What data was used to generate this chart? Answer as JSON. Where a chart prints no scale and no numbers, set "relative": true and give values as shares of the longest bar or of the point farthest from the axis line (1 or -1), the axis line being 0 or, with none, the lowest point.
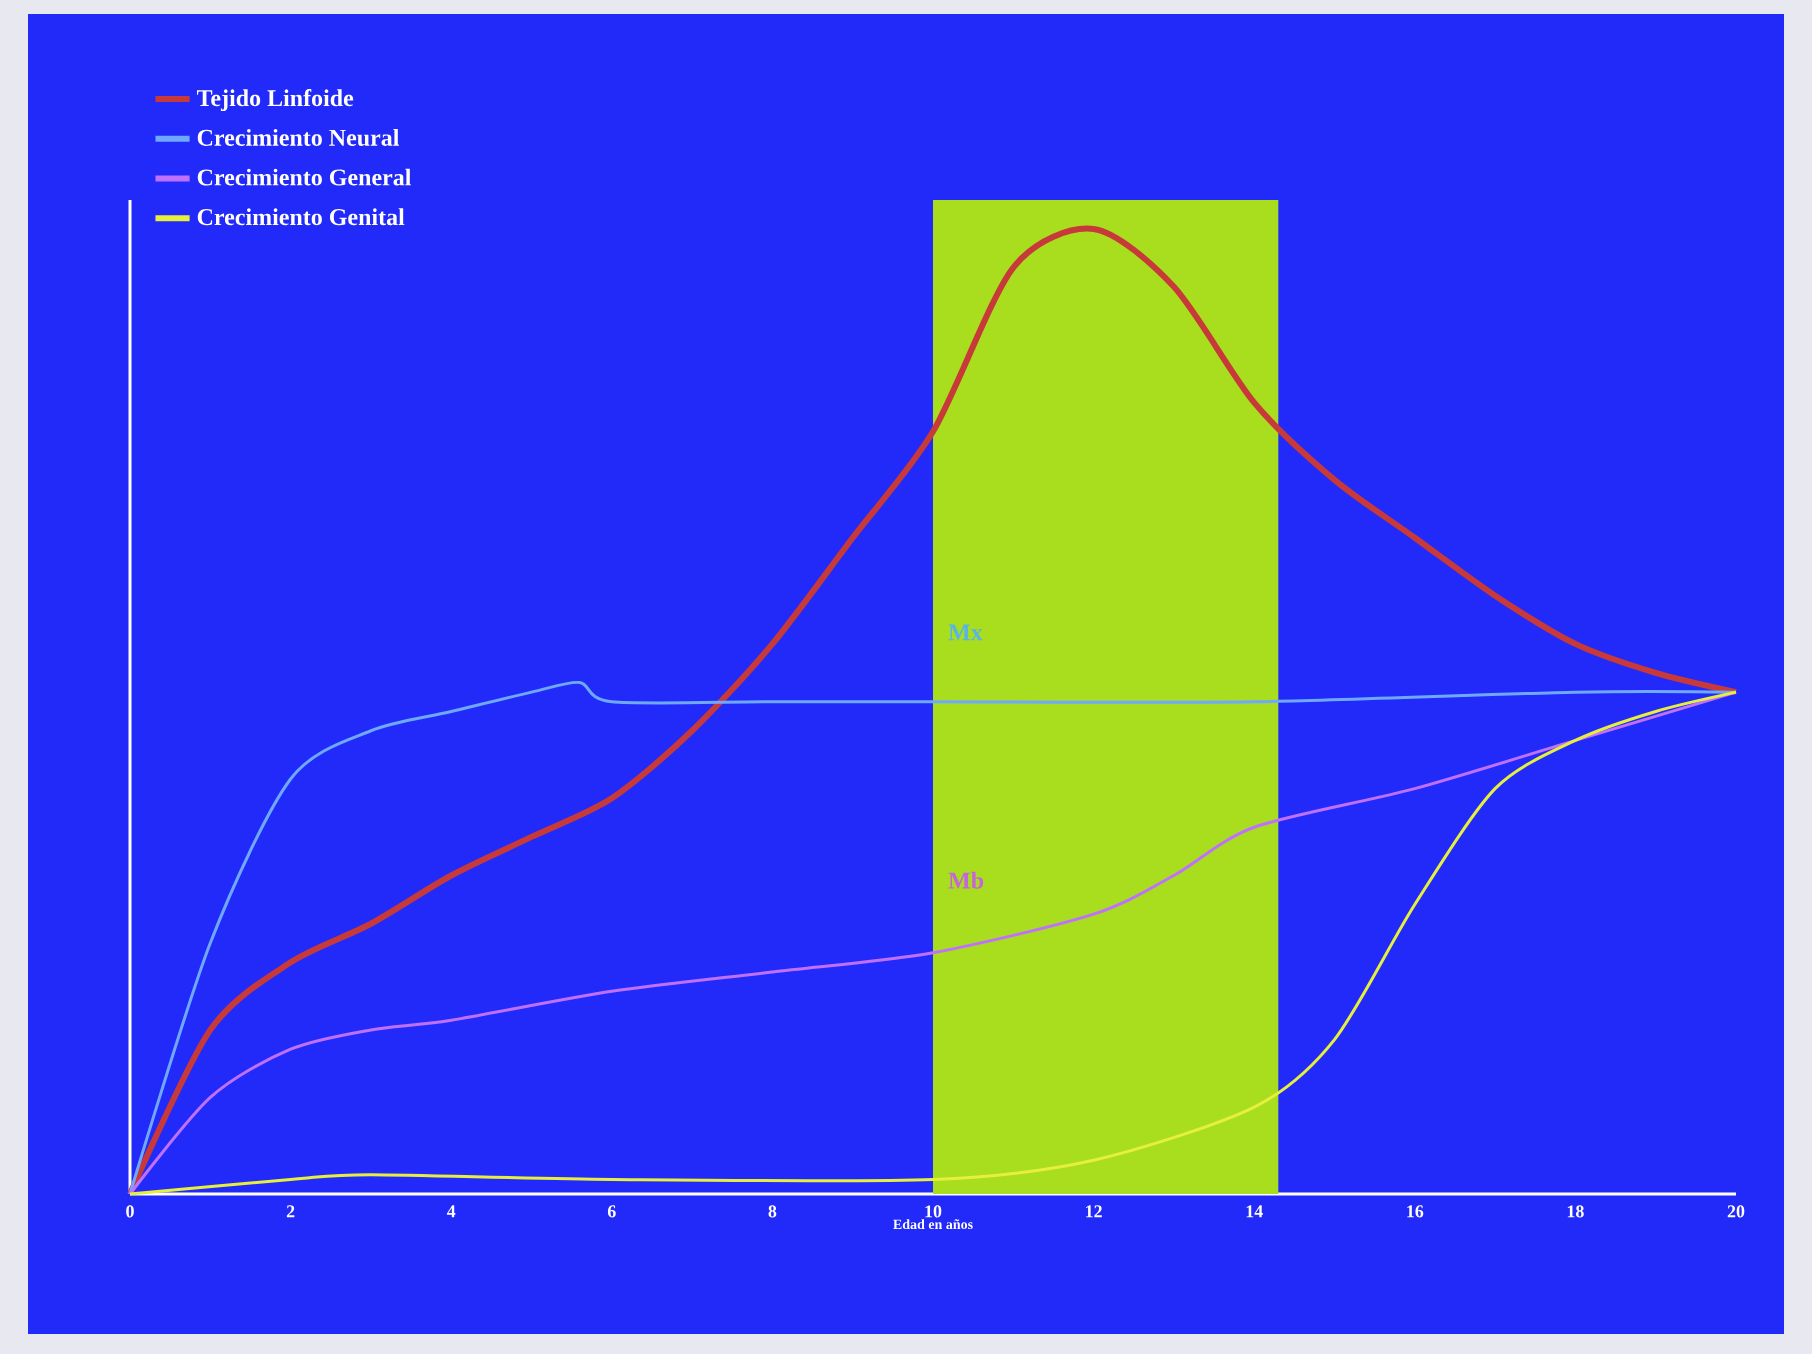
{
  "chart_data": {
    "type": "line",
    "relative": true,
    "xlabel": "Edad en años",
    "xlim": [
      0,
      20
    ],
    "xticks": [
      0,
      2,
      4,
      6,
      8,
      10,
      12,
      14,
      16,
      18,
      20
    ],
    "legend": "top left",
    "grid": false,
    "marker": "none",
    "line_style": "solid",
    "bands": [
      {
        "axis": "x",
        "from": 10,
        "to": 14.3,
        "color": "#a8de1e"
      }
    ],
    "annotations": [
      "Mx",
      "Mb"
    ],
    "series": [
      {
        "name": "Tejido Linfoide",
        "color": "#c83a3a",
        "x": [
          0,
          1,
          2,
          3,
          4,
          5,
          6,
          7,
          8,
          9,
          10,
          11,
          12,
          13,
          14,
          15,
          16,
          17,
          18,
          19,
          20
        ],
        "values": [
          0,
          0.17,
          0.24,
          0.28,
          0.33,
          0.37,
          0.41,
          0.48,
          0.57,
          0.68,
          0.79,
          0.96,
          1.0,
          0.94,
          0.82,
          0.74,
          0.68,
          0.62,
          0.57,
          0.54,
          0.52
        ]
      },
      {
        "name": "Crecimiento Neural",
        "color": "#6fa8ff",
        "x": [
          0,
          1,
          2,
          3,
          4,
          5,
          5.6,
          6,
          8,
          10,
          14,
          18,
          20
        ],
        "values": [
          0,
          0.26,
          0.43,
          0.48,
          0.5,
          0.52,
          0.53,
          0.51,
          0.51,
          0.51,
          0.51,
          0.52,
          0.52
        ]
      },
      {
        "name": "Crecimiento General",
        "color": "#c070ff",
        "x": [
          0,
          1,
          2,
          3,
          4,
          6,
          8,
          10,
          12,
          13,
          14,
          16,
          18,
          20
        ],
        "values": [
          0,
          0.1,
          0.15,
          0.17,
          0.18,
          0.21,
          0.23,
          0.25,
          0.29,
          0.33,
          0.38,
          0.42,
          0.47,
          0.52
        ]
      },
      {
        "name": "Crecimiento Genital",
        "color": "#e6f03c",
        "x": [
          0,
          2,
          3,
          6,
          10,
          12,
          14,
          15,
          16,
          17,
          18,
          19,
          20
        ],
        "values": [
          0,
          0.015,
          0.02,
          0.015,
          0.015,
          0.035,
          0.09,
          0.16,
          0.3,
          0.42,
          0.47,
          0.5,
          0.52
        ]
      }
    ]
  }
}
